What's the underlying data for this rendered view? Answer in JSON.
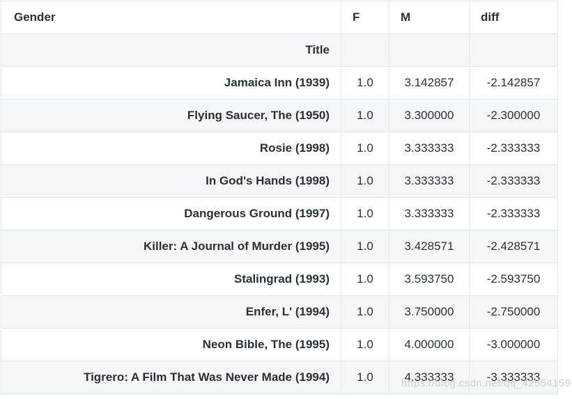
{
  "table": {
    "columns_name": "Gender",
    "index_name": "Title",
    "columns": [
      "F",
      "M",
      "diff"
    ],
    "rows": [
      {
        "title": "Jamaica Inn (1939)",
        "F": "1.0",
        "M": "3.142857",
        "diff": "-2.142857"
      },
      {
        "title": "Flying Saucer, The (1950)",
        "F": "1.0",
        "M": "3.300000",
        "diff": "-2.300000"
      },
      {
        "title": "Rosie (1998)",
        "F": "1.0",
        "M": "3.333333",
        "diff": "-2.333333"
      },
      {
        "title": "In God's Hands (1998)",
        "F": "1.0",
        "M": "3.333333",
        "diff": "-2.333333"
      },
      {
        "title": "Dangerous Ground (1997)",
        "F": "1.0",
        "M": "3.333333",
        "diff": "-2.333333"
      },
      {
        "title": "Killer: A Journal of Murder (1995)",
        "F": "1.0",
        "M": "3.428571",
        "diff": "-2.428571"
      },
      {
        "title": "Stalingrad (1993)",
        "F": "1.0",
        "M": "3.593750",
        "diff": "-2.593750"
      },
      {
        "title": "Enfer, L' (1994)",
        "F": "1.0",
        "M": "3.750000",
        "diff": "-2.750000"
      },
      {
        "title": "Neon Bible, The (1995)",
        "F": "1.0",
        "M": "4.000000",
        "diff": "-3.000000"
      },
      {
        "title": "Tigrero: A Film That Was Never Made (1994)",
        "F": "1.0",
        "M": "4.333333",
        "diff": "-3.333333"
      }
    ]
  },
  "chart_data": {
    "type": "table",
    "title": "",
    "columns_header_name": "Gender",
    "index_header_name": "Title",
    "columns": [
      "F",
      "M",
      "diff"
    ],
    "index": [
      "Jamaica Inn (1939)",
      "Flying Saucer, The (1950)",
      "Rosie (1998)",
      "In God's Hands (1998)",
      "Dangerous Ground (1997)",
      "Killer: A Journal of Murder (1995)",
      "Stalingrad (1993)",
      "Enfer, L' (1994)",
      "Neon Bible, The (1995)",
      "Tigrero: A Film That Was Never Made (1994)"
    ],
    "series": [
      {
        "name": "F",
        "values": [
          1.0,
          1.0,
          1.0,
          1.0,
          1.0,
          1.0,
          1.0,
          1.0,
          1.0,
          1.0
        ]
      },
      {
        "name": "M",
        "values": [
          3.142857,
          3.3,
          3.333333,
          3.333333,
          3.333333,
          3.428571,
          3.59375,
          3.75,
          4.0,
          4.333333
        ]
      },
      {
        "name": "diff",
        "values": [
          -2.142857,
          -2.3,
          -2.333333,
          -2.333333,
          -2.333333,
          -2.428571,
          -2.59375,
          -2.75,
          -3.0,
          -3.333333
        ]
      }
    ]
  },
  "watermark": {
    "text": "https://blog.csdn.net/qq_42554159"
  },
  "colors": {
    "text": "#2b3037",
    "border": "#e3e5e9",
    "stripe_row_bg": "#f5f6f8",
    "row_bg": "#ffffff",
    "watermark_text": "#c9ccd2"
  }
}
